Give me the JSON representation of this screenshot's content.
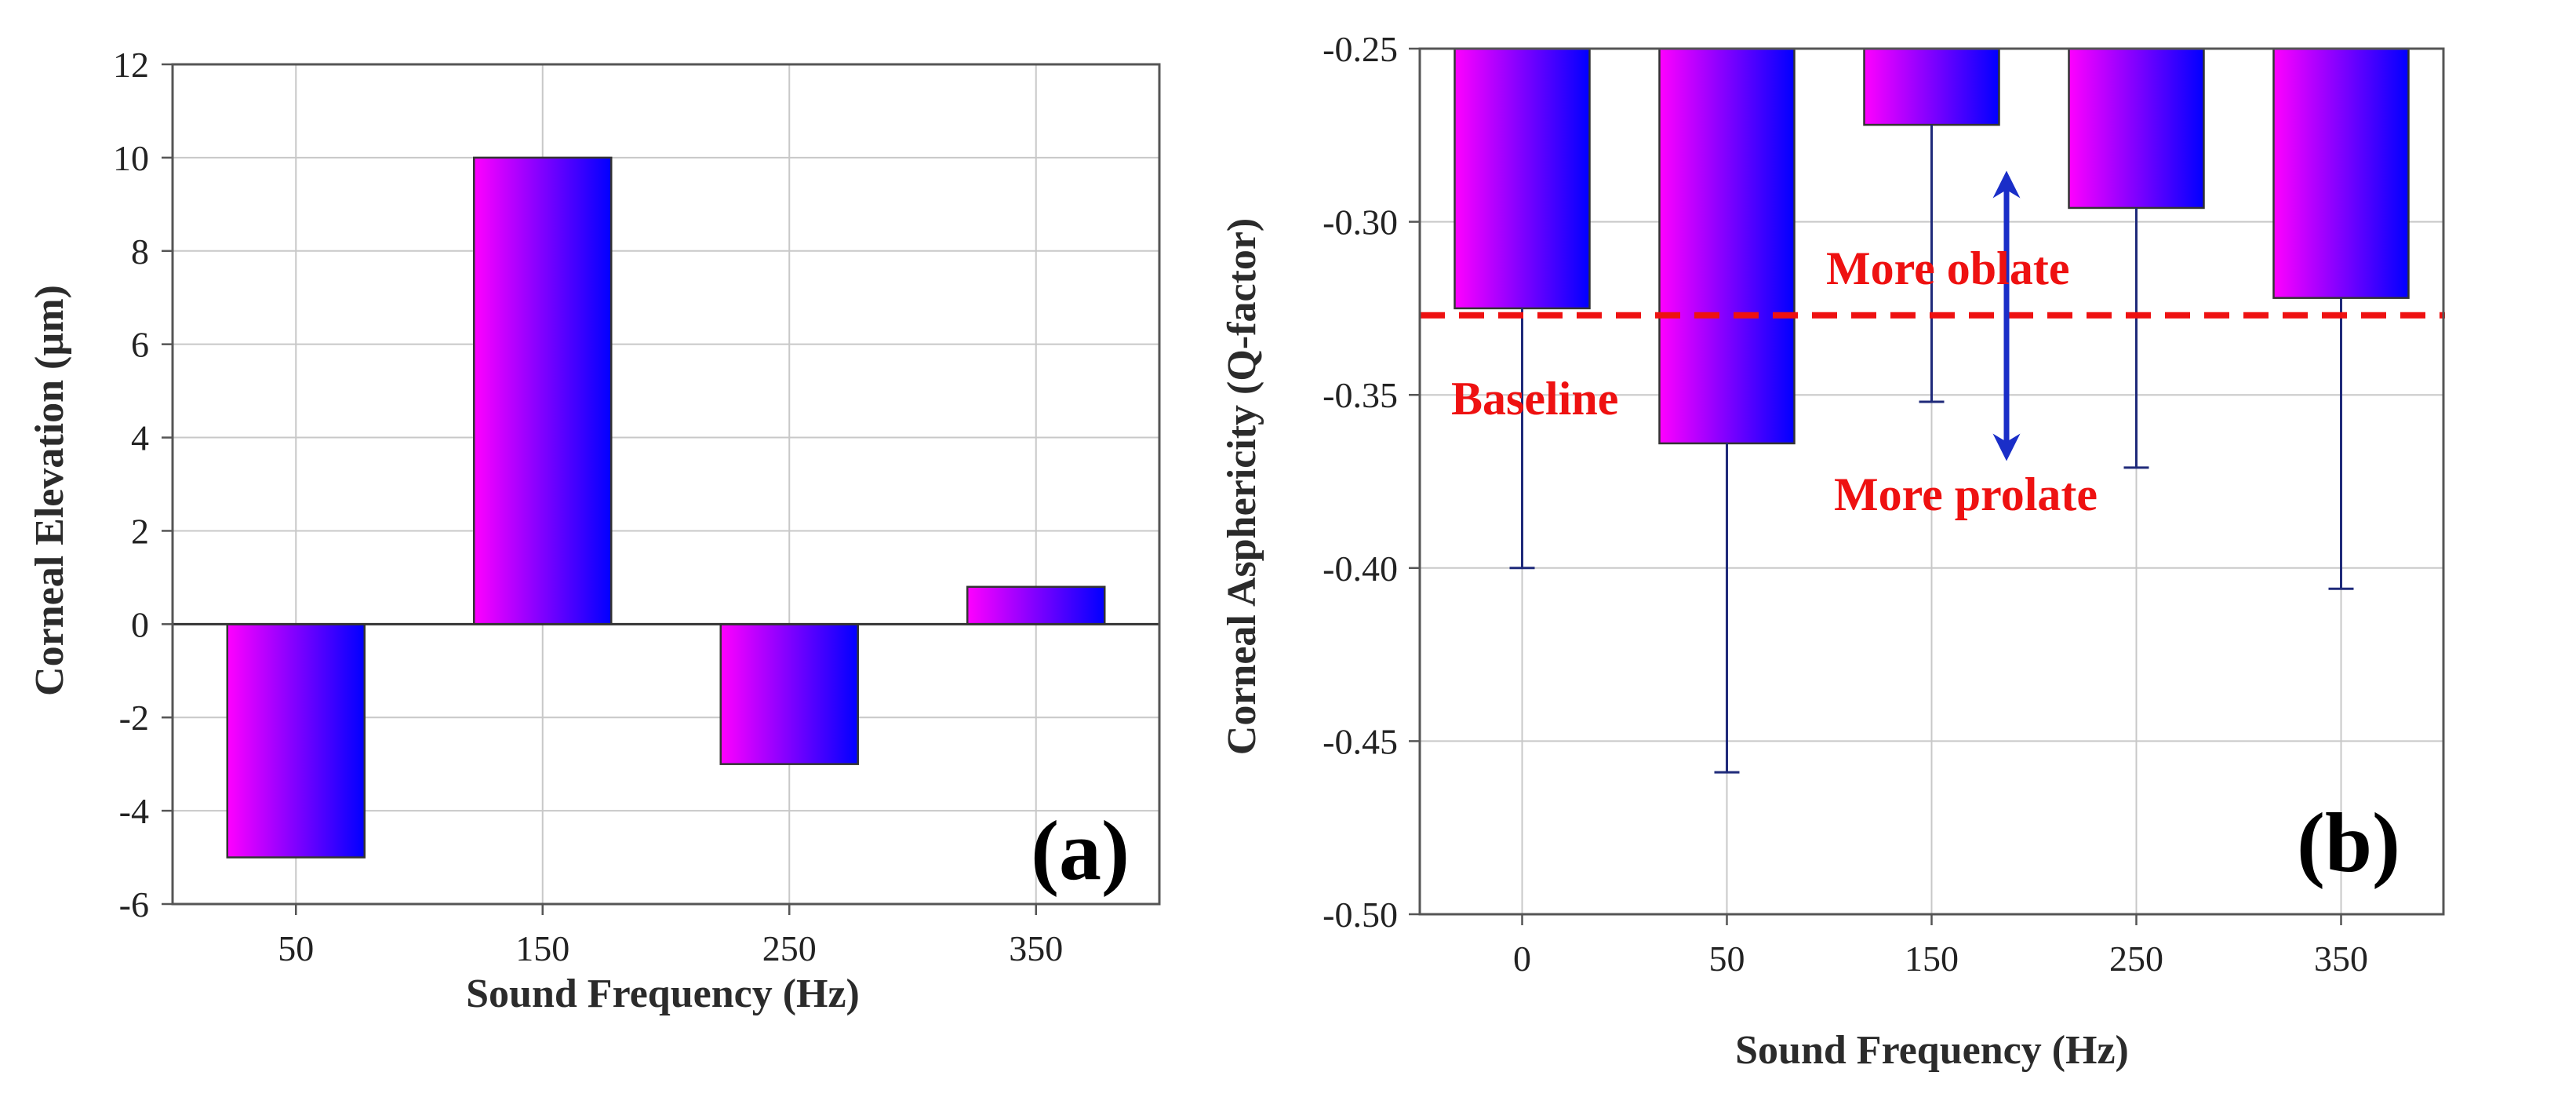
{
  "chart_data": [
    {
      "id": "a",
      "type": "bar",
      "panel_label": "(a)",
      "xlabel": "Sound Frequency (Hz)",
      "ylabel": "Corneal Elevation  (µm)",
      "categories": [
        "50",
        "150",
        "250",
        "350"
      ],
      "values": [
        -5,
        10,
        -3,
        0.8
      ],
      "ylim": [
        -6,
        12
      ],
      "yticks": [
        -6,
        -4,
        -2,
        0,
        2,
        4,
        6,
        8,
        10,
        12
      ],
      "ytick_labels": [
        "-6",
        "-4",
        "-2",
        "0",
        "2",
        "4",
        "6",
        "8",
        "10",
        "12"
      ],
      "grid": true,
      "zero_line": true
    },
    {
      "id": "b",
      "type": "bar",
      "panel_label": "(b)",
      "xlabel": "Sound Frequency (Hz)",
      "ylabel": "Corneal Asphericity (Q-factor)",
      "categories": [
        "0",
        "50",
        "150",
        "250",
        "350"
      ],
      "values": [
        -0.325,
        -0.364,
        -0.272,
        -0.296,
        -0.322
      ],
      "error_low": [
        -0.4,
        -0.459,
        -0.352,
        -0.371,
        -0.406
      ],
      "bar_top": -0.25,
      "ylim": [
        -0.5,
        -0.25
      ],
      "yticks": [
        -0.5,
        -0.45,
        -0.4,
        -0.35,
        -0.3,
        -0.25
      ],
      "ytick_labels": [
        "-0.50",
        "-0.45",
        "-0.40",
        "-0.35",
        "-0.30",
        "-0.25"
      ],
      "grid": true,
      "baseline": -0.327,
      "annotations": {
        "baseline": "Baseline",
        "oblate": "More oblate",
        "prolate": "More prolate"
      }
    }
  ],
  "colors": {
    "bar_start": "#ff00ff",
    "bar_end": "#0000ff",
    "baseline": "#ee1111",
    "arrow": "#1a2ec8",
    "error_bar": "#1f2a7a",
    "grid": "#c8c8c8"
  }
}
